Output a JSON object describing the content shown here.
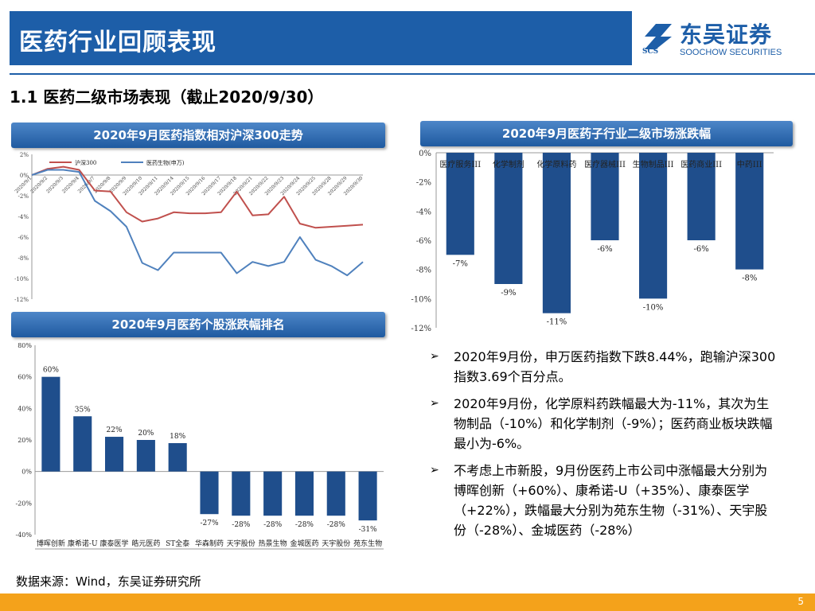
{
  "header": {
    "title": "医药行业回顾表现"
  },
  "logo": {
    "cn": "东吴证券",
    "en": "SOOCHOW SECURITIES",
    "mark": "SCS"
  },
  "section_title": "1.1 医药二级市场表现（截止2020/9/30）",
  "panels": {
    "line": "2020年9月医药指数相对沪深300走势",
    "sub": "2020年9月医药子行业二级市场涨跌幅",
    "stock": "2020年9月医药个股涨跌幅排名"
  },
  "bullets": [
    "2020年9月份，申万医药指数下跌8.44%，跑输沪深300指数3.69个百分点。",
    "2020年9月份，化学原料药跌幅最大为-11%，其次为生物制品（-10%）和化学制剂（-9%）；医药商业板块跌幅最小为-6%。",
    "不考虑上市新股，9月份医药上市公司中涨幅最大分别为博晖创新（+60%）、康希诺-U（+35%）、康泰医学（+22%），跌幅最大分别为苑东生物（-31%）、天宇股份（-28%）、金城医药（-28%）"
  ],
  "source": "数据来源：Wind，东吴证券研究所",
  "page_number": "5",
  "colors": {
    "brand": "#1d5ea8",
    "bar": "#1f4e8c",
    "red": "#c0504d",
    "blue": "#4f81bd",
    "footer": "#f4a21b"
  },
  "chart_data": [
    {
      "type": "line",
      "title": "2020年9月医药指数相对沪深300走势",
      "x": [
        "2020/9/1",
        "2020/9/2",
        "2020/9/3",
        "2020/9/4",
        "2020/9/7",
        "2020/9/8",
        "2020/9/9",
        "2020/9/10",
        "2020/9/11",
        "2020/9/14",
        "2020/9/15",
        "2020/9/16",
        "2020/9/17",
        "2020/9/18",
        "2020/9/21",
        "2020/9/22",
        "2020/9/23",
        "2020/9/24",
        "2020/9/25",
        "2020/9/28",
        "2020/9/29",
        "2020/9/30"
      ],
      "series": [
        {
          "name": "沪深300",
          "values": [
            0,
            0.6,
            0.8,
            0.5,
            -1.5,
            -1.6,
            -3.6,
            -4.5,
            -4.2,
            -3.6,
            -3.7,
            -3.7,
            -3.6,
            -1.6,
            -3.9,
            -3.8,
            -2.1,
            -4.7,
            -5.1,
            -5.0,
            -4.9,
            -4.8
          ]
        },
        {
          "name": "医药生物(申万)",
          "values": [
            0,
            0.5,
            0.5,
            0.3,
            -2.5,
            -3.5,
            -5.0,
            -8.5,
            -9.2,
            -7.5,
            -7.5,
            -7.5,
            -7.5,
            -9.5,
            -8.4,
            -8.8,
            -8.4,
            -6.0,
            -8.2,
            -8.8,
            -9.7,
            -8.4
          ]
        }
      ],
      "ylim": [
        -12,
        2
      ],
      "yticks": [
        "2%",
        "0%",
        "-2%",
        "-4%",
        "-6%",
        "-8%",
        "-10%",
        "-12%"
      ],
      "legend": "top-left"
    },
    {
      "type": "bar",
      "title": "2020年9月医药子行业二级市场涨跌幅",
      "categories": [
        "医疗服务III",
        "化学制剂",
        "化学原料药",
        "医疗器械III",
        "生物制品III",
        "医药商业III",
        "中药III"
      ],
      "values": [
        -7,
        -9,
        -11,
        -6,
        -10,
        -6,
        -8
      ],
      "labels": [
        "-7%",
        "-9%",
        "-11%",
        "-6%",
        "-10%",
        "-6%",
        "-8%"
      ],
      "ylim": [
        -12,
        0
      ],
      "yticks": [
        "0%",
        "-2%",
        "-4%",
        "-6%",
        "-8%",
        "-10%",
        "-12%"
      ]
    },
    {
      "type": "bar",
      "title": "2020年9月医药个股涨跌幅排名",
      "categories": [
        "博晖创新",
        "康希诺-U",
        "康泰医学",
        "皓元医药",
        "ST全泰",
        "华森制药",
        "天宇股份",
        "热景生物",
        "金城医药",
        "天宇股份",
        "苑东生物"
      ],
      "xlabels": [
        "博晖创新",
        "康希诺-U",
        "康泰医学",
        "皓元医药",
        "ST全泰",
        "华森制药",
        "天宇股份",
        "热景生物",
        "金城医药",
        "天宇股份",
        "苑东生物"
      ],
      "values": [
        60,
        35,
        22,
        20,
        18,
        -27,
        -28,
        -28,
        -28,
        -28,
        -31
      ],
      "labels": [
        "60%",
        "35%",
        "22%",
        "20%",
        "18%",
        "-27%",
        "-28%",
        "-28%",
        "-28%",
        "-28%",
        "-31%"
      ],
      "ylim": [
        -40,
        80
      ],
      "yticks": [
        "80%",
        "60%",
        "40%",
        "20%",
        "0%",
        "-20%",
        "-40%"
      ]
    }
  ]
}
